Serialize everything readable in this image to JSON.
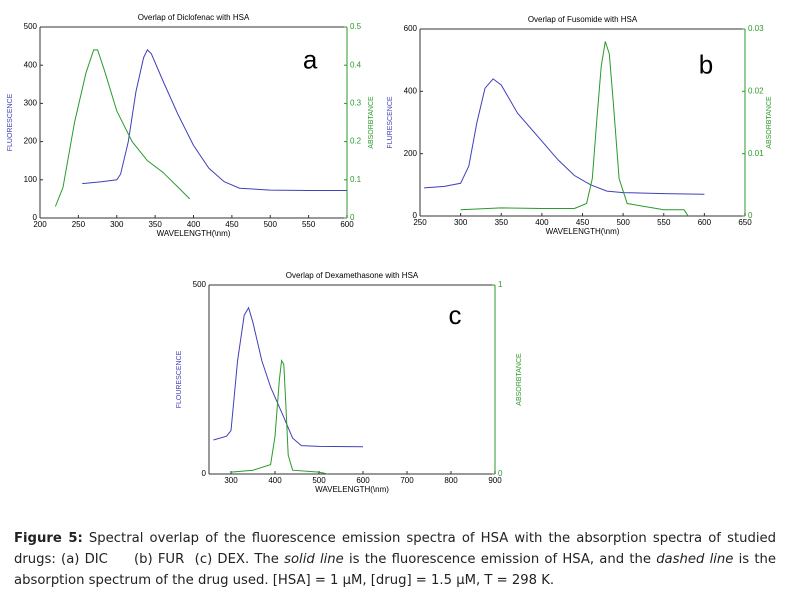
{
  "chart_data": [
    {
      "type": "line",
      "title": "Overlap of Diclofenac with HSA",
      "xlabel": "WAVELENGTH(\\nm)",
      "ylabel": "FLUORESCENCE",
      "y2label": "ABSORBTANCE",
      "annotation": "a",
      "xlim": [
        200,
        600
      ],
      "xticks": [
        200,
        250,
        300,
        350,
        400,
        450,
        500,
        550,
        600
      ],
      "ylim": [
        0,
        500
      ],
      "yticks": [
        0,
        100,
        200,
        300,
        400,
        500
      ],
      "y2lim": [
        0,
        0.5
      ],
      "y2ticks": [
        0,
        0.1,
        0.2,
        0.3,
        0.4,
        0.5
      ],
      "series": [
        {
          "color": "#4040b8",
          "x": [
            255,
            280,
            300,
            305,
            315,
            325,
            335,
            340,
            345,
            360,
            380,
            400,
            420,
            440,
            460,
            500,
            550,
            600
          ],
          "values": [
            90,
            95,
            100,
            115,
            200,
            330,
            420,
            440,
            430,
            360,
            270,
            190,
            130,
            95,
            78,
            73,
            72,
            72
          ]
        },
        {
          "color": "#2a9a2a",
          "axis": "y2",
          "x": [
            220,
            230,
            245,
            260,
            270,
            275,
            285,
            300,
            320,
            340,
            360,
            380,
            395
          ],
          "values": [
            0.03,
            0.08,
            0.25,
            0.38,
            0.44,
            0.44,
            0.38,
            0.28,
            0.2,
            0.15,
            0.12,
            0.08,
            0.05
          ]
        }
      ]
    },
    {
      "type": "line",
      "title": "Overlap of Fusomide with HSA",
      "xlabel": "WAVELENGTH(\\nm)",
      "ylabel": "FLURESCENCE",
      "y2label": "ABSORBTANCE",
      "annotation": "b",
      "xlim": [
        250,
        650
      ],
      "xticks": [
        250,
        300,
        350,
        400,
        450,
        500,
        550,
        600,
        650
      ],
      "ylim": [
        0,
        600
      ],
      "yticks": [
        0,
        200,
        400,
        600
      ],
      "y2lim": [
        0,
        0.03
      ],
      "y2ticks": [
        0,
        0.01,
        0.02,
        0.03
      ],
      "series": [
        {
          "color": "#4040b8",
          "x": [
            255,
            280,
            300,
            310,
            320,
            330,
            340,
            350,
            370,
            400,
            420,
            440,
            460,
            480,
            500,
            550,
            600
          ],
          "values": [
            90,
            95,
            105,
            160,
            300,
            410,
            440,
            420,
            330,
            240,
            180,
            130,
            100,
            80,
            75,
            72,
            70
          ]
        },
        {
          "color": "#2a9a2a",
          "axis": "y2",
          "x": [
            300,
            350,
            400,
            440,
            455,
            462,
            468,
            473,
            478,
            483,
            488,
            495,
            505,
            550,
            575,
            580
          ],
          "values": [
            0.001,
            0.0013,
            0.0012,
            0.0012,
            0.002,
            0.006,
            0.016,
            0.024,
            0.028,
            0.026,
            0.018,
            0.006,
            0.002,
            0.001,
            0.001,
            0
          ]
        }
      ]
    },
    {
      "type": "line",
      "title": "Overlap of Dexamethasone with HSA",
      "xlabel": "WAVELENGTH(\\nm)",
      "ylabel": "FLOURESCENCE",
      "y2label": "ABSORBTANCE",
      "annotation": "c",
      "xlim": [
        250,
        900
      ],
      "xticks": [
        300,
        400,
        500,
        600,
        700,
        800,
        900
      ],
      "ylim": [
        0,
        500
      ],
      "yticks": [
        0,
        500
      ],
      "y2lim": [
        0,
        1
      ],
      "y2ticks": [
        0,
        1
      ],
      "series": [
        {
          "color": "#4040b8",
          "x": [
            260,
            290,
            300,
            315,
            330,
            340,
            350,
            370,
            390,
            420,
            440,
            460,
            500,
            600
          ],
          "values": [
            90,
            100,
            115,
            300,
            420,
            440,
            400,
            300,
            230,
            150,
            95,
            75,
            73,
            72
          ]
        },
        {
          "color": "#2a9a2a",
          "axis": "y2",
          "x": [
            300,
            350,
            390,
            400,
            410,
            415,
            420,
            425,
            430,
            440,
            500,
            520
          ],
          "values": [
            0.01,
            0.02,
            0.05,
            0.2,
            0.5,
            0.6,
            0.58,
            0.35,
            0.1,
            0.02,
            0.01,
            0
          ]
        }
      ]
    }
  ],
  "caption": [
    {
      "text": "Figure 5:",
      "style": "bold"
    },
    {
      "text": " Spectral overlap of the fluorescence emission spectra of HSA with the absorption spectra of studied drugs: (a) DIC     (b) FUR  (c) DEX. The ",
      "style": "normal"
    },
    {
      "text": "solid line",
      "style": "italic"
    },
    {
      "text": " is the fluorescence emission of HSA, and the ",
      "style": "normal"
    },
    {
      "text": "dashed line",
      "style": "italic"
    },
    {
      "text": " is the absorption spectrum of the drug used. [HSA] = 1 μM, [drug] = 1.5 μM, T = 298 K.",
      "style": "normal"
    }
  ]
}
